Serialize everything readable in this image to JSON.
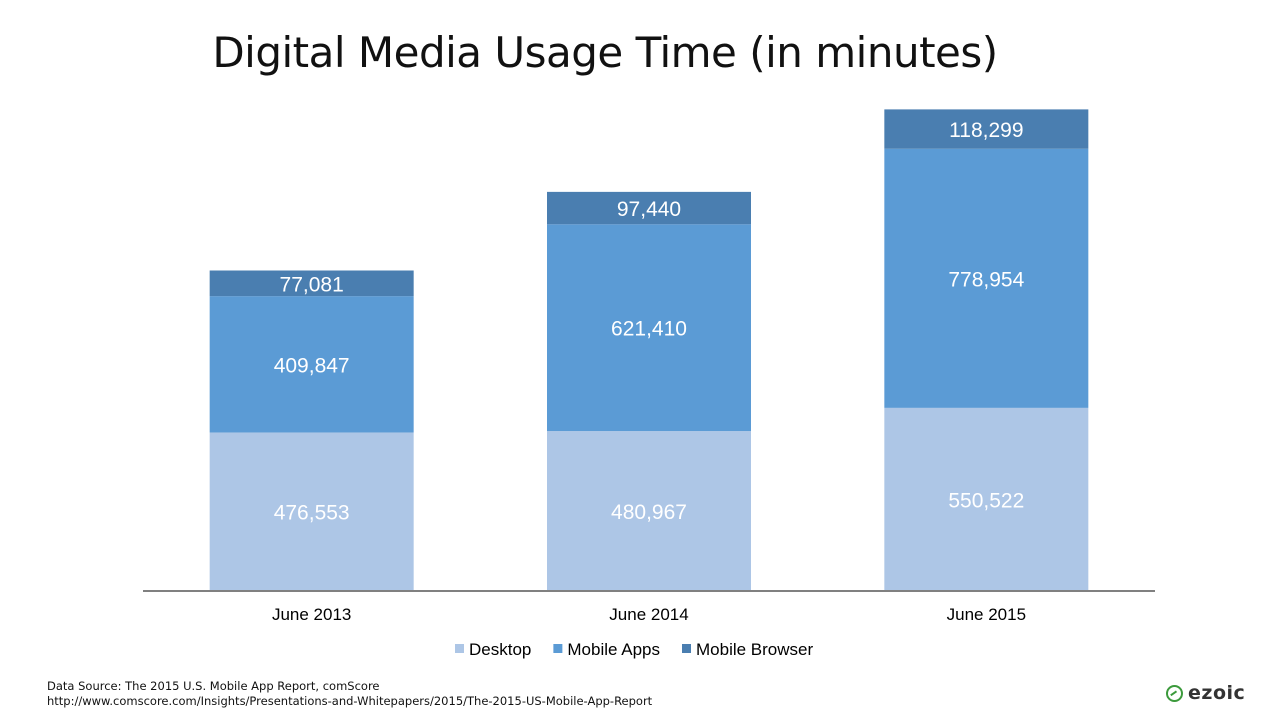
{
  "chart_data": {
    "type": "bar",
    "stacked": true,
    "title": "Digital Media Usage Time (in minutes)",
    "categories": [
      "June 2013",
      "June 2014",
      "June 2015"
    ],
    "series": [
      {
        "name": "Desktop",
        "values": [
          476553,
          480967,
          550522
        ],
        "labels": [
          "476,553",
          "480,967",
          "550,522"
        ],
        "color": "#adc6e6"
      },
      {
        "name": "Mobile Apps",
        "values": [
          409847,
          621410,
          778954
        ],
        "labels": [
          "409,847",
          "621,410",
          "778,954"
        ],
        "color": "#5b9bd5"
      },
      {
        "name": "Mobile Browser",
        "values": [
          77081,
          97440,
          118299
        ],
        "labels": [
          "77,081",
          "97,440",
          "118,299"
        ],
        "color": "#4a7eb0"
      }
    ],
    "ylim": [
      0,
      1470000
    ],
    "grid": false,
    "legend": "bottom"
  },
  "footer": {
    "source_line1": "Data Source: The 2015 U.S. Mobile App Report, comScore",
    "source_line2": "http://www.comscore.com/Insights/Presentations-and-Whitepapers/2015/The-2015-US-Mobile-App-Report",
    "brand": "ezoic"
  }
}
